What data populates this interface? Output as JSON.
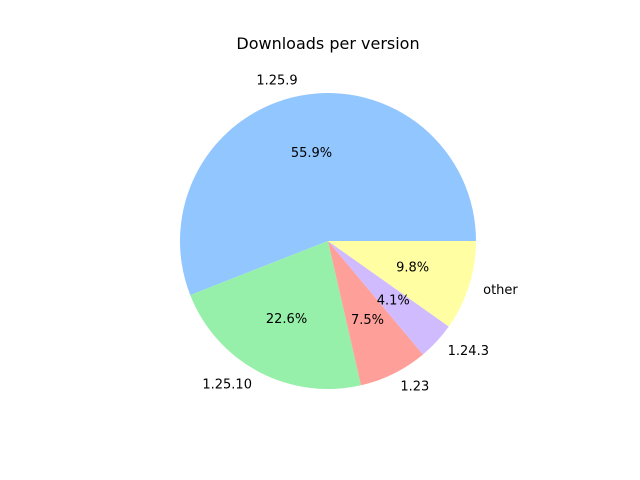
{
  "chart_data": {
    "type": "pie",
    "title": "Downloads per version",
    "slices": [
      {
        "label": "1.25.9",
        "value": 55.9,
        "pct_label": "55.9%",
        "color": "#92c6ff"
      },
      {
        "label": "1.25.10",
        "value": 22.6,
        "pct_label": "22.6%",
        "color": "#97f0aa"
      },
      {
        "label": "1.23",
        "value": 7.5,
        "pct_label": "7.5%",
        "color": "#ff9f9a"
      },
      {
        "label": "1.24.3",
        "value": 4.1,
        "pct_label": "4.1%",
        "color": "#d0bbff"
      },
      {
        "label": "other",
        "value": 9.8,
        "pct_label": "9.8%",
        "color": "#fffea3"
      }
    ],
    "start_angle_deg": 0,
    "direction": "counterclockwise"
  }
}
